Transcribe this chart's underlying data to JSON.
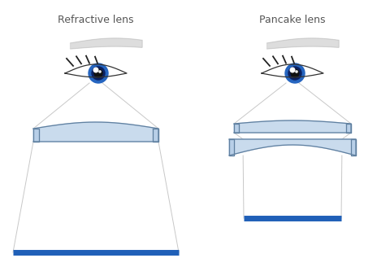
{
  "title_left": "Refractive lens",
  "title_right": "Pancake lens",
  "title_fontsize": 9,
  "title_color": "#555555",
  "bg_color": "#ffffff",
  "lens_fill": "#b8cfe8",
  "lens_fill2": "#a8c0e0",
  "lens_edge": "#6080a0",
  "lens_alpha": 0.75,
  "line_color": "#c8c8c8",
  "bar_color": "#2060b8",
  "eyebrow_color": "#d8d8d8",
  "eyebrow_edge": "#b0b0b0",
  "eye_white": "#ffffff",
  "eye_outline": "#333333",
  "eye_blue": "#2565c0",
  "eye_dark": "#0a2060",
  "pupil_color": "#111111",
  "highlight_color": "#ffffff",
  "lash_color": "#222222",
  "skin_color": "#f0ece8"
}
